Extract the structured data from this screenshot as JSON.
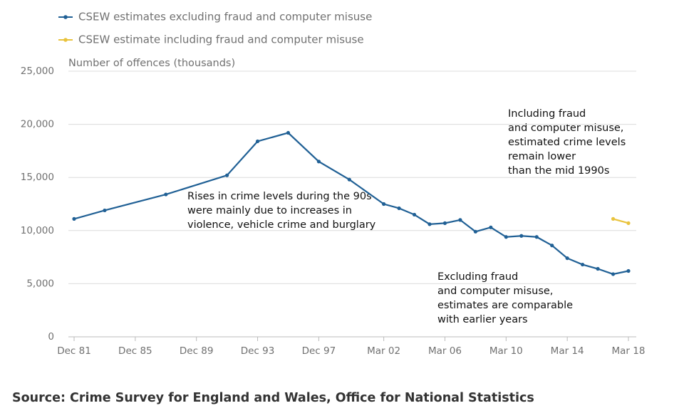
{
  "chart_data": {
    "type": "line",
    "y_label": "Number of offences (thousands)",
    "source": "Source: Crime Survey for England and Wales, Office for National Statistics",
    "x": [
      "Dec 81",
      "Dec 83",
      "Dec 87",
      "Dec 91",
      "Dec 93",
      "Dec 95",
      "Dec 97",
      "Dec 99",
      "Mar 02",
      "Mar 03",
      "Mar 04",
      "Mar 05",
      "Mar 06",
      "Mar 07",
      "Mar 08",
      "Mar 09",
      "Mar 10",
      "Mar 11",
      "Mar 12",
      "Mar 13",
      "Mar 14",
      "Mar 15",
      "Mar 16",
      "Mar 17",
      "Mar 18"
    ],
    "series": [
      {
        "name": "CSEW estimates excluding fraud and computer misuse",
        "color": "#206095",
        "values": [
          11100,
          11900,
          13400,
          15200,
          18400,
          19200,
          16500,
          14800,
          12500,
          12100,
          11500,
          10600,
          10700,
          11000,
          9900,
          10300,
          9400,
          9500,
          9400,
          8600,
          7400,
          6800,
          6400,
          5900,
          6200
        ]
      },
      {
        "name": "CSEW estimate including fraud and computer misuse",
        "color": "#e9c33d",
        "values": [
          null,
          null,
          null,
          null,
          null,
          null,
          null,
          null,
          null,
          null,
          null,
          null,
          null,
          null,
          null,
          null,
          null,
          null,
          null,
          null,
          null,
          null,
          null,
          11100,
          10700
        ]
      }
    ],
    "xlim": [
      "Dec 81",
      "Mar 18"
    ],
    "xticks": [
      "Dec 81",
      "Dec 85",
      "Dec 89",
      "Dec 93",
      "Dec 97",
      "Mar 02",
      "Mar 06",
      "Mar 10",
      "Mar 14",
      "Mar 18"
    ],
    "ylim": [
      0,
      25000
    ],
    "yticks": [
      0,
      {
        "value": 5000,
        "label": "5,000"
      },
      {
        "value": 10000,
        "label": "10,000"
      },
      {
        "value": 15000,
        "label": "15,000"
      },
      {
        "value": 20000,
        "label": "20,000"
      },
      {
        "value": 25000,
        "label": "25,000"
      }
    ],
    "grid": true,
    "annotations": [
      [
        "Rises in crime levels during the 90s",
        "were mainly due to increases in",
        "violence, vehicle crime and burglary"
      ],
      [
        "Including fraud",
        "and computer misuse,",
        "estimated crime levels",
        "remain lower",
        "than the mid 1990s"
      ],
      [
        "Excluding fraud",
        "and computer misuse,",
        "estimates are comparable",
        "with earlier years"
      ]
    ]
  }
}
